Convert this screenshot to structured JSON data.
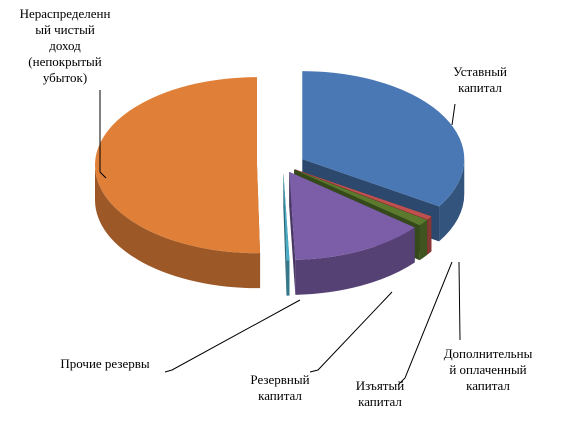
{
  "chart_data": {
    "type": "pie",
    "categories": [
      "Уставный\nкапитал",
      "Дополнительны\nй оплаченный\nкапитал",
      "Изъятый\nкапитал",
      "Резервный\nкапитал",
      "Прочие резервы",
      "Нераспределенн\nый чистый\nдоход\n(непокрытый\nубыток)"
    ],
    "values": [
      34,
      0.7,
      1.2,
      13.5,
      0.3,
      50.3
    ],
    "colors": [
      "#4a78b4",
      "#c0504d",
      "#5b7a2e",
      "#7b5ea7",
      "#4bacc6",
      "#e08038"
    ]
  }
}
